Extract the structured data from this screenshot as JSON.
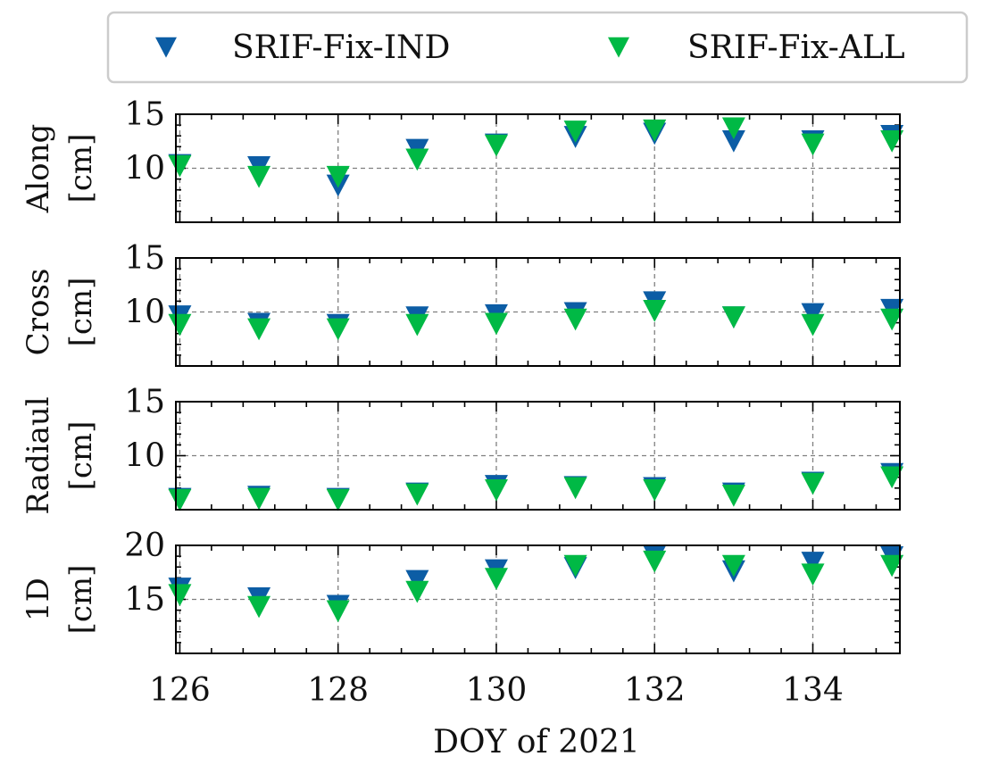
{
  "chart_data": {
    "type": "scatter",
    "legend": {
      "placement": "top",
      "entries": [
        {
          "label": "SRIF-Fix-IND",
          "color": "#0C5DA5"
        },
        {
          "label": "SRIF-Fix-ALL",
          "color": "#00B945"
        }
      ]
    },
    "x": [
      126,
      127,
      128,
      129,
      130,
      131,
      132,
      133,
      134,
      135
    ],
    "xlim": [
      125.95,
      135.1
    ],
    "xticks": [
      "126",
      "128",
      "130",
      "132",
      "134"
    ],
    "xlabel": "DOY of 2021",
    "panels": [
      {
        "ylabel_line1": "Along",
        "ylabel_line2": "[cm]",
        "ylim": [
          5,
          15
        ],
        "yticks": [
          "10",
          "15"
        ],
        "ref_line": 10,
        "series": [
          {
            "name": "SRIF-Fix-IND",
            "values": [
              10.4,
              10.2,
              8.5,
              11.8,
              12.3,
              13.0,
              13.3,
              12.6,
              12.6,
              13.1
            ]
          },
          {
            "name": "SRIF-Fix-ALL",
            "values": [
              10.3,
              9.3,
              9.3,
              10.9,
              12.2,
              13.5,
              13.6,
              13.8,
              12.3,
              12.6
            ]
          }
        ]
      },
      {
        "ylabel_line1": "Cross",
        "ylabel_line2": "[cm]",
        "ylim": [
          5,
          15
        ],
        "yticks": [
          "10",
          "15"
        ],
        "ref_line": 10,
        "series": [
          {
            "name": "SRIF-Fix-IND",
            "values": [
              9.7,
              9.0,
              8.9,
              9.6,
              9.8,
              10.0,
              11.0,
              9.6,
              9.9,
              10.3
            ]
          },
          {
            "name": "SRIF-Fix-ALL",
            "values": [
              8.9,
              8.5,
              8.5,
              8.9,
              9.0,
              9.4,
              10.2,
              9.6,
              8.9,
              9.4
            ]
          }
        ]
      },
      {
        "ylabel_line1": "Radiaul",
        "ylabel_line2": "[cm]",
        "ylim": [
          5,
          15
        ],
        "yticks": [
          "10",
          "15"
        ],
        "ref_line": 10,
        "series": [
          {
            "name": "SRIF-Fix-IND",
            "values": [
              6.1,
              6.3,
              6.1,
              6.6,
              7.3,
              7.2,
              7.1,
              6.6,
              7.6,
              8.4
            ]
          },
          {
            "name": "SRIF-Fix-ALL",
            "values": [
              6.0,
              6.1,
              6.0,
              6.5,
              6.9,
              7.1,
              6.9,
              6.4,
              7.5,
              8.1
            ]
          }
        ]
      },
      {
        "ylabel_line1": "1D",
        "ylabel_line2": "[cm]",
        "ylim": [
          10,
          20
        ],
        "yticks": [
          "15",
          "20"
        ],
        "ref_line": 15,
        "series": [
          {
            "name": "SRIF-Fix-IND",
            "values": [
              16.1,
              15.2,
              14.5,
              16.8,
              17.8,
              18.0,
              19.1,
              17.7,
              18.5,
              19.0
            ]
          },
          {
            "name": "SRIF-Fix-ALL",
            "values": [
              15.5,
              14.4,
              14.0,
              15.8,
              17.0,
              18.2,
              18.6,
              18.2,
              17.4,
              18.2
            ]
          }
        ]
      }
    ]
  }
}
